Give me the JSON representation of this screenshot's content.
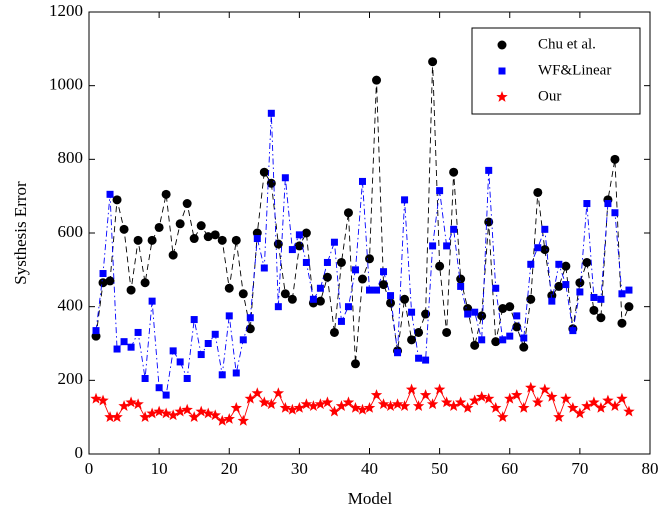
{
  "chart_data": {
    "type": "line",
    "x_label": "Model",
    "y_label": "Systhesis Error",
    "xlim": [
      0,
      80
    ],
    "xticks": [
      0,
      10,
      20,
      30,
      40,
      50,
      60,
      70,
      80
    ],
    "ylim": [
      0,
      1200
    ],
    "yticks": [
      0,
      200,
      400,
      600,
      800,
      1000,
      1200
    ],
    "legend": "upper right",
    "grid": false,
    "x": [
      1,
      2,
      3,
      4,
      5,
      6,
      7,
      8,
      9,
      10,
      11,
      12,
      13,
      14,
      15,
      16,
      17,
      18,
      19,
      20,
      21,
      22,
      23,
      24,
      25,
      26,
      27,
      28,
      29,
      30,
      31,
      32,
      33,
      34,
      35,
      36,
      37,
      38,
      39,
      40,
      41,
      42,
      43,
      44,
      45,
      46,
      47,
      48,
      49,
      50,
      51,
      52,
      53,
      54,
      55,
      56,
      57,
      58,
      59,
      60,
      61,
      62,
      63,
      64,
      65,
      66,
      67,
      68,
      69,
      70,
      71,
      72,
      73,
      74,
      75,
      76,
      77
    ],
    "series": [
      {
        "name": "Chu et al.",
        "color": "#000000",
        "marker": "circle",
        "dash": "6,4",
        "values": [
          320,
          465,
          470,
          690,
          610,
          445,
          580,
          465,
          580,
          615,
          705,
          540,
          625,
          680,
          585,
          620,
          590,
          595,
          580,
          450,
          580,
          435,
          340,
          600,
          765,
          735,
          570,
          435,
          420,
          565,
          600,
          410,
          415,
          480,
          330,
          520,
          655,
          245,
          475,
          530,
          1015,
          460,
          410,
          280,
          420,
          310,
          330,
          380,
          1065,
          510,
          330,
          765,
          475,
          395,
          295,
          375,
          630,
          305,
          395,
          400,
          345,
          290,
          420,
          710,
          555,
          430,
          455,
          510,
          340,
          465,
          520,
          390,
          370,
          690,
          800,
          355,
          400
        ]
      },
      {
        "name": "WF&Linear",
        "color": "#0000ff",
        "marker": "square",
        "dash": "6,3,1.5,3",
        "values": [
          335,
          490,
          705,
          285,
          305,
          290,
          330,
          205,
          415,
          180,
          160,
          280,
          250,
          205,
          365,
          270,
          300,
          325,
          215,
          375,
          220,
          310,
          370,
          585,
          505,
          925,
          400,
          750,
          555,
          595,
          520,
          420,
          450,
          520,
          575,
          360,
          400,
          500,
          740,
          445,
          445,
          495,
          430,
          275,
          690,
          385,
          260,
          255,
          565,
          715,
          565,
          610,
          455,
          380,
          385,
          310,
          770,
          450,
          310,
          320,
          375,
          315,
          515,
          560,
          610,
          415,
          515,
          460,
          335,
          440,
          680,
          425,
          420,
          680,
          655,
          435,
          445
        ]
      },
      {
        "name": "Our",
        "color": "#ff0000",
        "marker": "star",
        "dash": "none",
        "values": [
          150,
          145,
          100,
          100,
          130,
          140,
          135,
          100,
          110,
          115,
          110,
          105,
          115,
          120,
          100,
          115,
          110,
          105,
          90,
          95,
          125,
          90,
          150,
          165,
          140,
          135,
          165,
          125,
          120,
          125,
          135,
          130,
          135,
          140,
          115,
          130,
          140,
          125,
          120,
          125,
          160,
          135,
          130,
          135,
          130,
          175,
          130,
          160,
          135,
          175,
          140,
          130,
          140,
          125,
          145,
          155,
          150,
          125,
          100,
          150,
          160,
          125,
          180,
          140,
          175,
          155,
          100,
          150,
          125,
          110,
          130,
          140,
          125,
          145,
          130,
          150,
          115
        ]
      }
    ]
  }
}
